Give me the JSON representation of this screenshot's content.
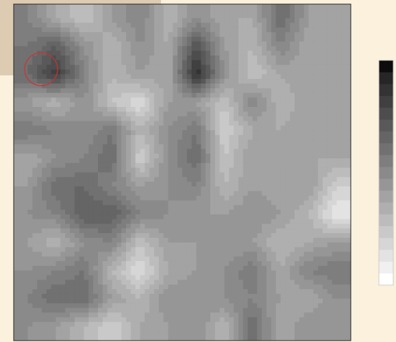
{
  "chart_data": {
    "type": "contour",
    "colors": [
      "#ffffff",
      "#f0f0f0",
      "#e3e3e3",
      "#d6d6d6",
      "#c9c9c9",
      "#bcbcbc",
      "#afafaf",
      "#a3a3a3",
      "#969696",
      "#8a8a8a",
      "#7e7e7e",
      "#717171",
      "#656565",
      "#595959",
      "#4d4d4d",
      "#404040",
      "#333333",
      "#262626",
      "#0d0d0d"
    ],
    "z": [
      [
        10,
        7,
        5,
        8,
        10,
        6,
        9,
        7,
        7,
        12,
        8,
        7
      ],
      [
        11,
        13,
        9,
        6,
        9,
        7,
        14,
        8,
        6,
        10,
        7,
        7
      ],
      [
        12,
        16,
        10,
        6,
        8,
        7,
        17,
        9,
        5,
        7,
        8,
        7
      ],
      [
        8,
        6,
        9,
        5,
        3,
        8,
        8,
        5,
        10,
        6,
        8,
        7
      ],
      [
        11,
        10,
        9,
        11,
        6,
        9,
        11,
        4,
        7,
        7,
        8,
        8
      ],
      [
        7,
        9,
        10,
        12,
        4,
        9,
        12,
        5,
        8,
        8,
        7,
        7
      ],
      [
        8,
        12,
        12,
        10,
        8,
        9,
        10,
        6,
        8,
        7,
        8,
        4
      ],
      [
        9,
        10,
        13,
        13,
        10,
        9,
        8,
        8,
        9,
        8,
        6,
        2
      ],
      [
        8,
        6,
        9,
        10,
        5,
        8,
        8,
        8,
        8,
        6,
        7,
        8
      ],
      [
        9,
        10,
        11,
        6,
        3,
        7,
        8,
        9,
        11,
        7,
        10,
        11
      ],
      [
        10,
        12,
        12,
        8,
        6,
        9,
        9,
        9,
        10,
        8,
        7,
        9
      ],
      [
        9,
        8,
        6,
        4,
        7,
        8,
        9,
        6,
        12,
        7,
        9,
        8
      ]
    ]
  }
}
